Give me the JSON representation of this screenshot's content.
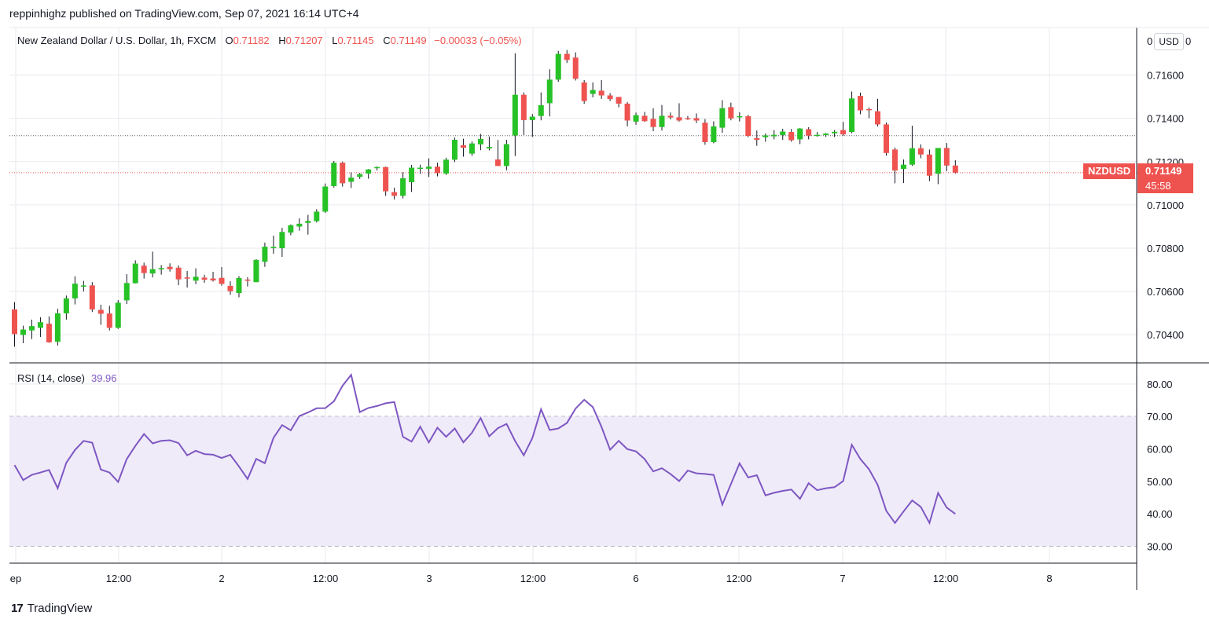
{
  "header": {
    "publish_line": "reppinhighz published on TradingView.com, Sep 07, 2021 16:14 UTC+4"
  },
  "symbol_legend": {
    "name": "New Zealand Dollar / U.S. Dollar, 1h, FXCM",
    "open_label": "O",
    "open": "0.71182",
    "high_label": "H",
    "high": "0.71207",
    "low_label": "L",
    "low": "0.71145",
    "close_label": "C",
    "close": "0.71149",
    "change": "−0.00033 (−0.05%)"
  },
  "rsi_legend": {
    "label": "RSI (14, close)",
    "value": "39.96"
  },
  "currency": "USD",
  "price_tag": {
    "symbol": "NZDUSD",
    "price": "0.71149",
    "countdown": "45:58"
  },
  "top_axis_fragments": [
    "0",
    "0"
  ],
  "footer": {
    "logo": "TradingView",
    "logo_mark": "17"
  },
  "colors": {
    "up": "#26c226",
    "down": "#ef5350",
    "rsi": "#7e57c2",
    "band": "#efebf9",
    "grid": "#e8eaef"
  },
  "chart_data": [
    {
      "type": "candlestick",
      "title": "New Zealand Dollar / U.S. Dollar, 1h, FXCM",
      "x_ticks": [
        "ep",
        "12:00",
        "2",
        "12:00",
        "3",
        "12:00",
        "6",
        "12:00",
        "7",
        "12:00",
        "8"
      ],
      "y_ticks": [
        "0.71600",
        "0.71400",
        "0.71200",
        "0.71000",
        "0.70800",
        "0.70600",
        "0.70400"
      ],
      "ylim": [
        0.7027,
        0.7182
      ],
      "dotted_line_level": 0.7132,
      "last_price_line": 0.71149,
      "candles": [
        {
          "o": 0.70517,
          "h": 0.70551,
          "l": 0.70345,
          "c": 0.70403
        },
        {
          "o": 0.70399,
          "h": 0.70442,
          "l": 0.70361,
          "c": 0.70424
        },
        {
          "o": 0.7042,
          "h": 0.7047,
          "l": 0.7038,
          "c": 0.7044
        },
        {
          "o": 0.70432,
          "h": 0.70481,
          "l": 0.7039,
          "c": 0.70458
        },
        {
          "o": 0.70451,
          "h": 0.70485,
          "l": 0.70363,
          "c": 0.70365
        },
        {
          "o": 0.70368,
          "h": 0.7052,
          "l": 0.7035,
          "c": 0.70499
        },
        {
          "o": 0.70499,
          "h": 0.70581,
          "l": 0.7047,
          "c": 0.70568
        },
        {
          "o": 0.70568,
          "h": 0.7067,
          "l": 0.7054,
          "c": 0.70636
        },
        {
          "o": 0.70627,
          "h": 0.70649,
          "l": 0.706,
          "c": 0.70628
        },
        {
          "o": 0.70628,
          "h": 0.70643,
          "l": 0.70505,
          "c": 0.70517
        },
        {
          "o": 0.70515,
          "h": 0.70539,
          "l": 0.70446,
          "c": 0.70497
        },
        {
          "o": 0.70498,
          "h": 0.70534,
          "l": 0.7042,
          "c": 0.70432
        },
        {
          "o": 0.70432,
          "h": 0.7056,
          "l": 0.70427,
          "c": 0.70548
        },
        {
          "o": 0.70559,
          "h": 0.7068,
          "l": 0.70542,
          "c": 0.70639
        },
        {
          "o": 0.70638,
          "h": 0.70744,
          "l": 0.70637,
          "c": 0.70729
        },
        {
          "o": 0.70719,
          "h": 0.70733,
          "l": 0.7066,
          "c": 0.70685
        },
        {
          "o": 0.70683,
          "h": 0.70784,
          "l": 0.70665,
          "c": 0.70703
        },
        {
          "o": 0.70702,
          "h": 0.70722,
          "l": 0.70678,
          "c": 0.70708
        },
        {
          "o": 0.70714,
          "h": 0.7073,
          "l": 0.70692,
          "c": 0.70703
        },
        {
          "o": 0.7071,
          "h": 0.7072,
          "l": 0.70629,
          "c": 0.70656
        },
        {
          "o": 0.70665,
          "h": 0.70695,
          "l": 0.70618,
          "c": 0.70661
        },
        {
          "o": 0.7065,
          "h": 0.70707,
          "l": 0.70633,
          "c": 0.70668
        },
        {
          "o": 0.70664,
          "h": 0.70677,
          "l": 0.7064,
          "c": 0.70654
        },
        {
          "o": 0.7066,
          "h": 0.70691,
          "l": 0.70646,
          "c": 0.70651
        },
        {
          "o": 0.70663,
          "h": 0.70713,
          "l": 0.70627,
          "c": 0.70635
        },
        {
          "o": 0.70626,
          "h": 0.70647,
          "l": 0.70585,
          "c": 0.70601
        },
        {
          "o": 0.70593,
          "h": 0.70671,
          "l": 0.70573,
          "c": 0.70662
        },
        {
          "o": 0.70655,
          "h": 0.70666,
          "l": 0.70623,
          "c": 0.70652
        },
        {
          "o": 0.70643,
          "h": 0.70749,
          "l": 0.70643,
          "c": 0.70746
        },
        {
          "o": 0.70737,
          "h": 0.70826,
          "l": 0.70714,
          "c": 0.70807
        },
        {
          "o": 0.708,
          "h": 0.70858,
          "l": 0.70774,
          "c": 0.70806
        },
        {
          "o": 0.708,
          "h": 0.70894,
          "l": 0.7076,
          "c": 0.70875
        },
        {
          "o": 0.70872,
          "h": 0.7091,
          "l": 0.7086,
          "c": 0.70906
        },
        {
          "o": 0.709,
          "h": 0.70938,
          "l": 0.70881,
          "c": 0.70913
        },
        {
          "o": 0.70917,
          "h": 0.70954,
          "l": 0.70863,
          "c": 0.70926
        },
        {
          "o": 0.70925,
          "h": 0.7098,
          "l": 0.70919,
          "c": 0.70969
        },
        {
          "o": 0.70969,
          "h": 0.71099,
          "l": 0.70963,
          "c": 0.71085
        },
        {
          "o": 0.71087,
          "h": 0.71203,
          "l": 0.7108,
          "c": 0.71195
        },
        {
          "o": 0.71195,
          "h": 0.712,
          "l": 0.71085,
          "c": 0.711
        },
        {
          "o": 0.71107,
          "h": 0.7115,
          "l": 0.71078,
          "c": 0.71126
        },
        {
          "o": 0.7113,
          "h": 0.71148,
          "l": 0.7112,
          "c": 0.71142
        },
        {
          "o": 0.71145,
          "h": 0.71166,
          "l": 0.71121,
          "c": 0.71164
        },
        {
          "o": 0.71172,
          "h": 0.71178,
          "l": 0.71159,
          "c": 0.71175
        },
        {
          "o": 0.71175,
          "h": 0.71177,
          "l": 0.71042,
          "c": 0.71063
        },
        {
          "o": 0.71059,
          "h": 0.7108,
          "l": 0.71025,
          "c": 0.71042
        },
        {
          "o": 0.71042,
          "h": 0.71151,
          "l": 0.7103,
          "c": 0.71123
        },
        {
          "o": 0.71105,
          "h": 0.71185,
          "l": 0.7106,
          "c": 0.71172
        },
        {
          "o": 0.71172,
          "h": 0.71186,
          "l": 0.71144,
          "c": 0.71172
        },
        {
          "o": 0.71167,
          "h": 0.71215,
          "l": 0.71129,
          "c": 0.71177
        },
        {
          "o": 0.71177,
          "h": 0.71195,
          "l": 0.71132,
          "c": 0.71147
        },
        {
          "o": 0.71145,
          "h": 0.71218,
          "l": 0.71139,
          "c": 0.71209
        },
        {
          "o": 0.71209,
          "h": 0.71311,
          "l": 0.71198,
          "c": 0.71301
        },
        {
          "o": 0.71276,
          "h": 0.71306,
          "l": 0.71223,
          "c": 0.71264
        },
        {
          "o": 0.71237,
          "h": 0.71293,
          "l": 0.71227,
          "c": 0.71284
        },
        {
          "o": 0.7128,
          "h": 0.71328,
          "l": 0.71253,
          "c": 0.71305
        },
        {
          "o": 0.71261,
          "h": 0.71316,
          "l": 0.71252,
          "c": 0.71268
        },
        {
          "o": 0.7121,
          "h": 0.713,
          "l": 0.7118,
          "c": 0.7118
        },
        {
          "o": 0.7118,
          "h": 0.71301,
          "l": 0.7116,
          "c": 0.71281
        },
        {
          "o": 0.71321,
          "h": 0.717,
          "l": 0.71226,
          "c": 0.71509
        },
        {
          "o": 0.71509,
          "h": 0.7152,
          "l": 0.71323,
          "c": 0.71392
        },
        {
          "o": 0.71392,
          "h": 0.7142,
          "l": 0.71314,
          "c": 0.71408
        },
        {
          "o": 0.71411,
          "h": 0.7152,
          "l": 0.71391,
          "c": 0.71461
        },
        {
          "o": 0.7147,
          "h": 0.71627,
          "l": 0.71409,
          "c": 0.71579
        },
        {
          "o": 0.71579,
          "h": 0.71712,
          "l": 0.71569,
          "c": 0.71698
        },
        {
          "o": 0.71698,
          "h": 0.71716,
          "l": 0.71656,
          "c": 0.7167
        },
        {
          "o": 0.71681,
          "h": 0.71705,
          "l": 0.71575,
          "c": 0.71583
        },
        {
          "o": 0.71566,
          "h": 0.71577,
          "l": 0.71467,
          "c": 0.7148
        },
        {
          "o": 0.71513,
          "h": 0.71566,
          "l": 0.71497,
          "c": 0.71531
        },
        {
          "o": 0.71528,
          "h": 0.71577,
          "l": 0.7149,
          "c": 0.71506
        },
        {
          "o": 0.71506,
          "h": 0.71517,
          "l": 0.7148,
          "c": 0.71489
        },
        {
          "o": 0.71499,
          "h": 0.71499,
          "l": 0.71451,
          "c": 0.71468
        },
        {
          "o": 0.71468,
          "h": 0.71475,
          "l": 0.71363,
          "c": 0.7139
        },
        {
          "o": 0.71385,
          "h": 0.71427,
          "l": 0.7137,
          "c": 0.71415
        },
        {
          "o": 0.71412,
          "h": 0.7143,
          "l": 0.71384,
          "c": 0.71387
        },
        {
          "o": 0.71398,
          "h": 0.71447,
          "l": 0.71341,
          "c": 0.7136
        },
        {
          "o": 0.7136,
          "h": 0.71462,
          "l": 0.71344,
          "c": 0.71412
        },
        {
          "o": 0.71412,
          "h": 0.71427,
          "l": 0.71395,
          "c": 0.71404
        },
        {
          "o": 0.71405,
          "h": 0.7147,
          "l": 0.71385,
          "c": 0.7139
        },
        {
          "o": 0.71401,
          "h": 0.71411,
          "l": 0.71393,
          "c": 0.714
        },
        {
          "o": 0.71401,
          "h": 0.71423,
          "l": 0.71378,
          "c": 0.7139
        },
        {
          "o": 0.7138,
          "h": 0.71397,
          "l": 0.71278,
          "c": 0.7129
        },
        {
          "o": 0.7129,
          "h": 0.71386,
          "l": 0.71285,
          "c": 0.71363
        },
        {
          "o": 0.71357,
          "h": 0.71484,
          "l": 0.71333,
          "c": 0.71447
        },
        {
          "o": 0.71452,
          "h": 0.71473,
          "l": 0.71391,
          "c": 0.714
        },
        {
          "o": 0.71407,
          "h": 0.71428,
          "l": 0.71386,
          "c": 0.7141
        },
        {
          "o": 0.7141,
          "h": 0.71416,
          "l": 0.71313,
          "c": 0.71319
        },
        {
          "o": 0.71309,
          "h": 0.71344,
          "l": 0.71273,
          "c": 0.71301
        },
        {
          "o": 0.71313,
          "h": 0.7133,
          "l": 0.71292,
          "c": 0.71321
        },
        {
          "o": 0.71317,
          "h": 0.71346,
          "l": 0.71303,
          "c": 0.71324
        },
        {
          "o": 0.71323,
          "h": 0.71352,
          "l": 0.71301,
          "c": 0.71339
        },
        {
          "o": 0.71337,
          "h": 0.71351,
          "l": 0.71292,
          "c": 0.71299
        },
        {
          "o": 0.71303,
          "h": 0.71355,
          "l": 0.71281,
          "c": 0.71353
        },
        {
          "o": 0.7135,
          "h": 0.71359,
          "l": 0.71303,
          "c": 0.7132
        },
        {
          "o": 0.71321,
          "h": 0.71337,
          "l": 0.71316,
          "c": 0.71324
        },
        {
          "o": 0.71323,
          "h": 0.71332,
          "l": 0.71314,
          "c": 0.7133
        },
        {
          "o": 0.71331,
          "h": 0.71346,
          "l": 0.71314,
          "c": 0.71338
        },
        {
          "o": 0.71346,
          "h": 0.71384,
          "l": 0.7132,
          "c": 0.71326
        },
        {
          "o": 0.71337,
          "h": 0.71524,
          "l": 0.71331,
          "c": 0.71492
        },
        {
          "o": 0.71504,
          "h": 0.71519,
          "l": 0.71419,
          "c": 0.71437
        },
        {
          "o": 0.71443,
          "h": 0.7145,
          "l": 0.71401,
          "c": 0.7144
        },
        {
          "o": 0.71433,
          "h": 0.7149,
          "l": 0.71363,
          "c": 0.71372
        },
        {
          "o": 0.71372,
          "h": 0.71381,
          "l": 0.71228,
          "c": 0.7124
        },
        {
          "o": 0.71256,
          "h": 0.71265,
          "l": 0.711,
          "c": 0.71159
        },
        {
          "o": 0.71166,
          "h": 0.7121,
          "l": 0.71101,
          "c": 0.71186
        },
        {
          "o": 0.71186,
          "h": 0.71366,
          "l": 0.7118,
          "c": 0.71262
        },
        {
          "o": 0.71262,
          "h": 0.7128,
          "l": 0.71216,
          "c": 0.71233
        },
        {
          "o": 0.71233,
          "h": 0.71256,
          "l": 0.7111,
          "c": 0.71135
        },
        {
          "o": 0.71144,
          "h": 0.71263,
          "l": 0.71096,
          "c": 0.71263
        },
        {
          "o": 0.71263,
          "h": 0.71286,
          "l": 0.71156,
          "c": 0.71182
        },
        {
          "o": 0.71182,
          "h": 0.71207,
          "l": 0.71145,
          "c": 0.71149
        }
      ]
    },
    {
      "type": "line",
      "title": "RSI (14, close)",
      "y_ticks": [
        "80.00",
        "70.00",
        "60.00",
        "50.00",
        "40.00",
        "30.00"
      ],
      "ylim": [
        24.8,
        86.5
      ],
      "band": [
        30,
        70
      ],
      "mid_line": 50,
      "series": [
        {
          "values": [
            55.01,
            50.39,
            52.01,
            52.73,
            53.51,
            47.87,
            55.75,
            59.67,
            62.47,
            61.91,
            53.64,
            52.73,
            49.82,
            56.89,
            60.93,
            64.57,
            61.71,
            62.47,
            62.67,
            61.79,
            58.02,
            59.43,
            58.42,
            58.22,
            57.21,
            58.17,
            54.58,
            50.74,
            56.93,
            55.59,
            63.42,
            67.33,
            65.72,
            70.11,
            71.24,
            72.51,
            72.56,
            74.67,
            79.44,
            82.79,
            71.34,
            72.61,
            73.21,
            74.07,
            74.42,
            63.72,
            62.22,
            66.84,
            62.01,
            66.54,
            63.72,
            66.29,
            62.02,
            64.99,
            69.51,
            63.87,
            66.39,
            67.7,
            62.43,
            58.02,
            63.37,
            72.21,
            65.82,
            66.29,
            67.98,
            72.41,
            75.13,
            72.86,
            66.84,
            59.73,
            62.47,
            59.93,
            59.22,
            56.89,
            53.05,
            54.05,
            52.23,
            50.09,
            53.32,
            52.48,
            52.28,
            51.97,
            42.84,
            49.13,
            55.54,
            51.21,
            51.91,
            45.69,
            46.48,
            47.07,
            47.48,
            44.61,
            49.44,
            47.27,
            47.88,
            48.19,
            50.09,
            61.27,
            56.89,
            53.71,
            48.93,
            40.92,
            37.2,
            40.72,
            44.14,
            42.12,
            37.2,
            46.43,
            41.93,
            39.96
          ]
        }
      ]
    }
  ]
}
